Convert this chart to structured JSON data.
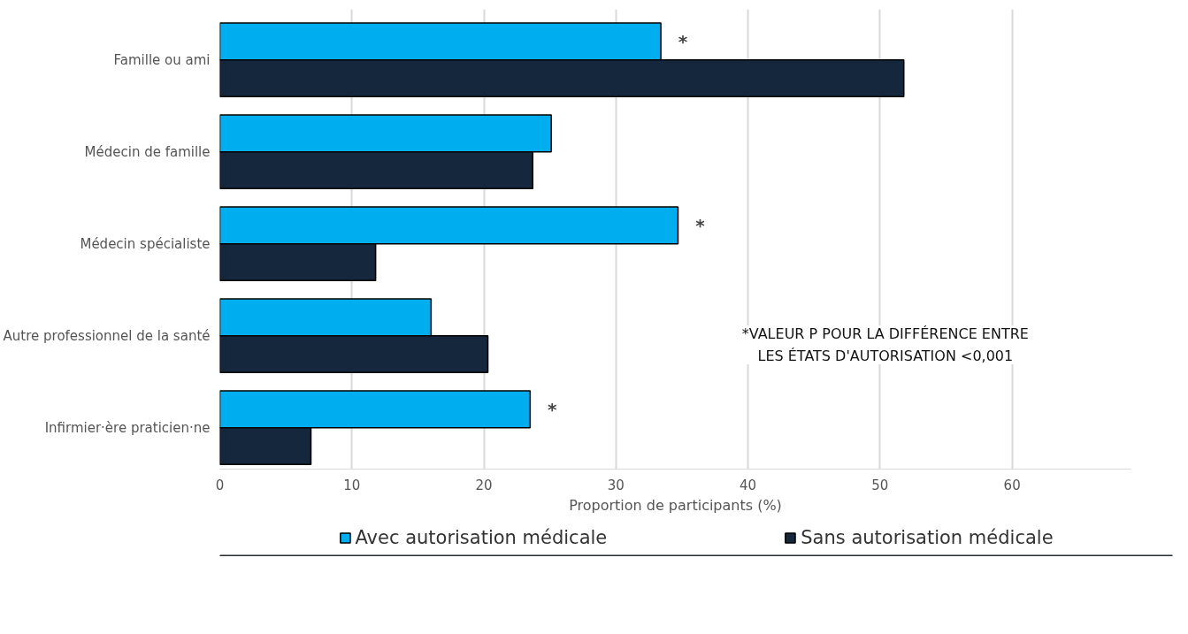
{
  "chart_data": {
    "type": "bar",
    "orientation": "horizontal",
    "categories": [
      "Famille ou ami",
      "Médecin de famille",
      "Médecin spécialiste",
      "Autre professionnel de la santé",
      "Infirmier·ère praticien·ne"
    ],
    "series": [
      {
        "name": "Avec autorisation médicale",
        "color": "#00aeef",
        "values": [
          33.4,
          25.1,
          34.7,
          16.0,
          23.5
        ]
      },
      {
        "name": "Sans autorisation médicale",
        "color": "#14273d",
        "values": [
          51.8,
          23.7,
          11.8,
          20.3,
          6.9
        ]
      }
    ],
    "xlabel": "Proportion de participants (%)",
    "xlim": [
      0,
      69
    ],
    "xticks": [
      0,
      10,
      20,
      30,
      40,
      50,
      60
    ],
    "grid": "x",
    "legend": "bottom",
    "annotations": [
      {
        "text": "*",
        "x": 33.4,
        "y": "Famille ou ami"
      },
      {
        "text": "*",
        "x": 34.7,
        "y": "Médecin spécialiste"
      },
      {
        "text": "*",
        "x": 23.5,
        "y": "Infirmier·ère praticien·ne"
      },
      "*VALEUR P POUR LA DIFFÉRENCE ENTRE\nLES ÉTATS D'AUTORISATION <0,001"
    ]
  }
}
